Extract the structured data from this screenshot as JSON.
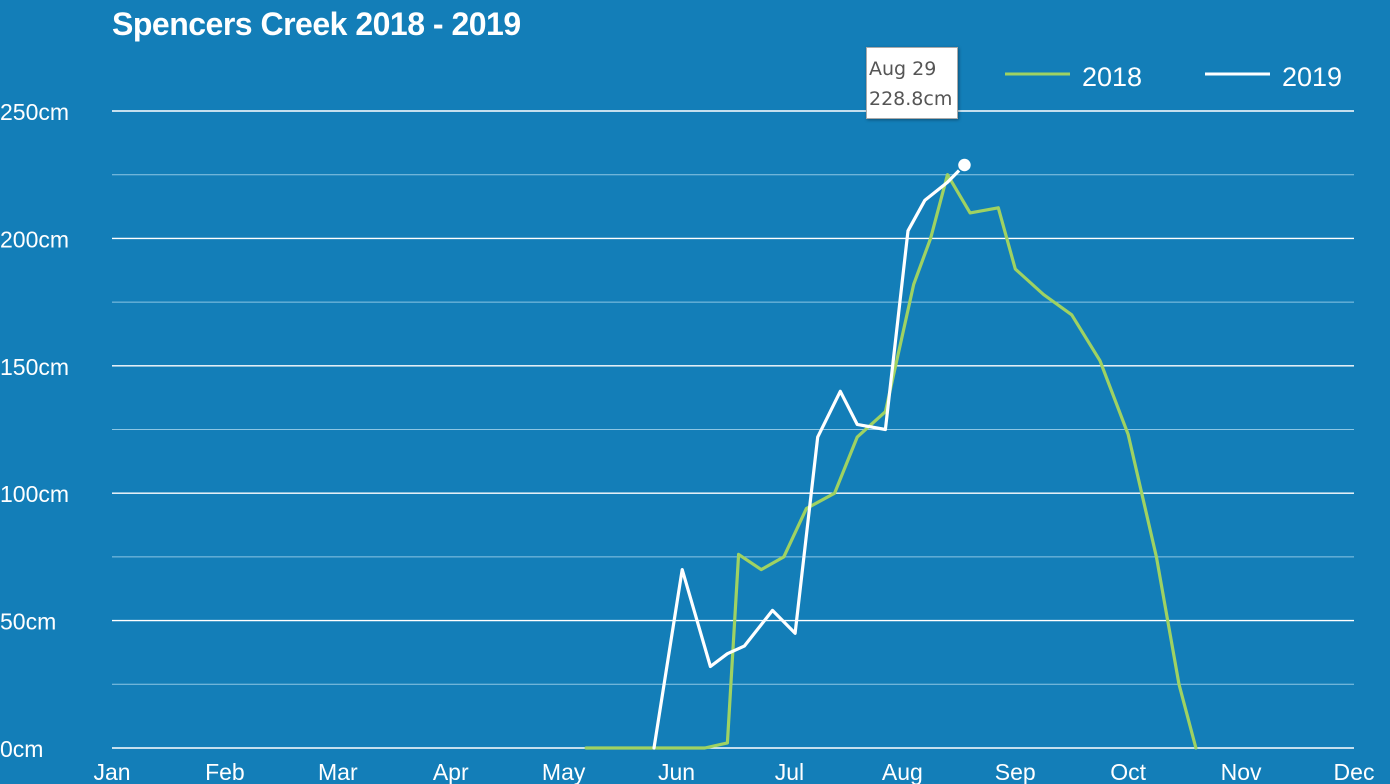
{
  "colors": {
    "background": "#137eb8",
    "series_2018": "#9fd262",
    "series_2019": "#ffffff",
    "grid_major": "#ffffff",
    "grid_minor": "#8cc6e4"
  },
  "chart_data": {
    "type": "line",
    "title": "Spencers Creek 2018 - 2019",
    "xlabel": "",
    "ylabel": "",
    "x_tick_labels": [
      "Jan",
      "Feb",
      "Mar",
      "Apr",
      "May",
      "Jun",
      "Jul",
      "Aug",
      "Sep",
      "Oct",
      "Nov",
      "Dec"
    ],
    "y_tick_labels": [
      "250cm",
      "200cm",
      "150cm",
      "100cm",
      "50cm",
      "0cm"
    ],
    "ylim": [
      0,
      250
    ],
    "x_unit": "month (Jan = 0)",
    "grid": true,
    "legend_position": "top-right",
    "series": [
      {
        "name": "2018",
        "color": "#9fd262",
        "x": [
          4.2,
          4.85,
          5.1,
          5.25,
          5.45,
          5.55,
          5.75,
          5.95,
          6.15,
          6.4,
          6.6,
          6.85,
          7.1,
          7.25,
          7.4,
          7.6,
          7.85,
          8.0,
          8.25,
          8.5,
          8.75,
          9.0,
          9.25,
          9.45,
          9.6,
          9.85,
          10.1,
          10.3,
          10.55
        ],
        "y": [
          0,
          0,
          0,
          0,
          2,
          76,
          70,
          75,
          94,
          100,
          122,
          132,
          182,
          200,
          225,
          210,
          212,
          188,
          178,
          170,
          152,
          123,
          75,
          25,
          0,
          null,
          null,
          null,
          null
        ]
      },
      {
        "name": "2019",
        "color": "#ffffff",
        "x": [
          4.8,
          5.05,
          5.3,
          5.45,
          5.6,
          5.85,
          6.05,
          6.25,
          6.45,
          6.6,
          6.85,
          7.05,
          7.2,
          7.4,
          7.55,
          7.8
        ],
        "y": [
          0,
          70,
          32,
          37,
          40,
          54,
          45,
          122,
          140,
          127,
          125,
          203,
          215,
          222,
          228.8,
          null
        ]
      }
    ],
    "tooltip": {
      "label": "Aug 29",
      "value": "228.8cm"
    }
  }
}
